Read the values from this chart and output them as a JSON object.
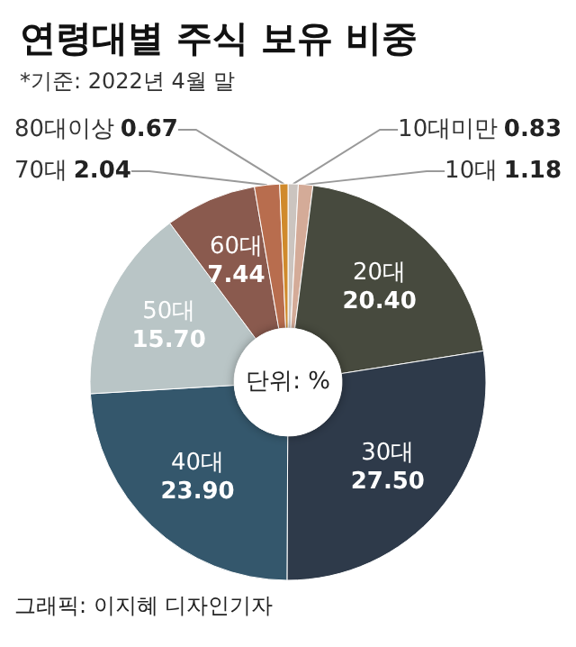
{
  "chart_data": {
    "type": "donut",
    "title": "연령대별 주식 보유 비중",
    "subtitle": "*기준: 2022년 4월 말",
    "categories": [
      "10대미만",
      "10대",
      "20대",
      "30대",
      "40대",
      "50대",
      "60대",
      "70대",
      "80대이상"
    ],
    "values": [
      0.83,
      1.18,
      20.4,
      27.5,
      23.9,
      15.7,
      7.44,
      2.04,
      0.67
    ],
    "value_labels": [
      "0.83",
      "1.18",
      "20.40",
      "27.50",
      "23.90",
      "15.70",
      "7.44",
      "2.04",
      "0.67"
    ],
    "colors": [
      "#cbc4bf",
      "#d4ab98",
      "#474a3e",
      "#2e3a4a",
      "#34576c",
      "#b9c5c6",
      "#8a5a4e",
      "#b86d4e",
      "#d08a2c"
    ],
    "annotations": [
      "단위: %",
      "그래픽: 이지혜 디자인기자"
    ]
  }
}
